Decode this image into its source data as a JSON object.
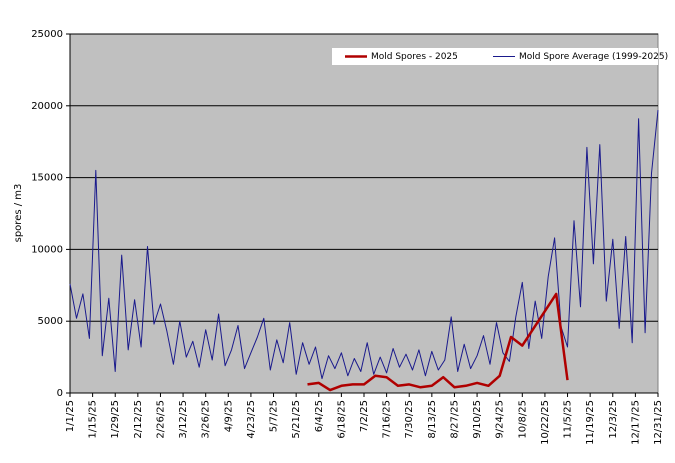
{
  "chart_data": {
    "type": "line",
    "y_label": "spores / m3",
    "ylim": [
      0,
      25000
    ],
    "yticks": [
      0,
      5000,
      10000,
      15000,
      20000,
      25000
    ],
    "grid": true,
    "xlim": [
      "1/1/25",
      "12/31/25"
    ],
    "xticks": [
      "1/1/25",
      "1/15/25",
      "1/29/25",
      "2/12/25",
      "2/26/25",
      "3/12/25",
      "3/26/25",
      "4/9/25",
      "4/23/25",
      "5/7/25",
      "5/21/25",
      "6/4/25",
      "6/18/25",
      "7/2/25",
      "7/16/25",
      "7/30/25",
      "8/13/25",
      "8/27/25",
      "9/10/25",
      "9/24/25",
      "10/8/25",
      "10/22/25",
      "11/5/25",
      "11/19/25",
      "12/3/25",
      "12/17/25",
      "12/31/25"
    ],
    "legend": "top-right",
    "series": [
      {
        "name": "Mold Spore Average (1999-2025)",
        "color": "#1a1a8c",
        "width": 1,
        "x": [
          "1/1/25",
          "1/5/25",
          "1/9/25",
          "1/13/25",
          "1/17/25",
          "1/21/25",
          "1/25/25",
          "1/29/25",
          "2/2/25",
          "2/6/25",
          "2/10/25",
          "2/14/25",
          "2/18/25",
          "2/22/25",
          "2/26/25",
          "3/2/25",
          "3/6/25",
          "3/10/25",
          "3/14/25",
          "3/18/25",
          "3/22/25",
          "3/26/25",
          "3/30/25",
          "4/3/25",
          "4/7/25",
          "4/11/25",
          "4/15/25",
          "4/19/25",
          "4/23/25",
          "4/27/25",
          "5/1/25",
          "5/5/25",
          "5/9/25",
          "5/13/25",
          "5/17/25",
          "5/21/25",
          "5/25/25",
          "5/29/25",
          "6/2/25",
          "6/6/25",
          "6/10/25",
          "6/14/25",
          "6/18/25",
          "6/22/25",
          "6/26/25",
          "6/30/25",
          "7/4/25",
          "7/8/25",
          "7/12/25",
          "7/16/25",
          "7/20/25",
          "7/24/25",
          "7/28/25",
          "8/1/25",
          "8/5/25",
          "8/9/25",
          "8/13/25",
          "8/17/25",
          "8/21/25",
          "8/25/25",
          "8/29/25",
          "9/2/25",
          "9/6/25",
          "9/10/25",
          "9/14/25",
          "9/18/25",
          "9/22/25",
          "9/26/25",
          "9/30/25",
          "10/4/25",
          "10/8/25",
          "10/12/25",
          "10/16/25",
          "10/20/25",
          "10/24/25",
          "10/28/25",
          "11/1/25",
          "11/5/25",
          "11/9/25",
          "11/13/25",
          "11/17/25",
          "11/21/25",
          "11/25/25",
          "11/29/25",
          "12/3/25",
          "12/7/25",
          "12/11/25",
          "12/15/25",
          "12/19/25",
          "12/23/25",
          "12/27/25",
          "12/31/25"
        ],
        "values": [
          7600,
          5200,
          6900,
          3800,
          15500,
          2600,
          6600,
          1500,
          9600,
          3000,
          6500,
          3200,
          10200,
          4800,
          6200,
          4300,
          2000,
          5000,
          2500,
          3600,
          1800,
          4400,
          2300,
          5500,
          1900,
          3000,
          4700,
          1700,
          2800,
          3900,
          5200,
          1600,
          3700,
          2100,
          4900,
          1300,
          3500,
          2000,
          3200,
          1000,
          2600,
          1700,
          2800,
          1200,
          2400,
          1500,
          3500,
          1300,
          2500,
          1400,
          3100,
          1800,
          2700,
          1600,
          3000,
          1200,
          2900,
          1600,
          2300,
          5300,
          1500,
          3400,
          1700,
          2600,
          4000,
          2000,
          4900,
          2800,
          2200,
          5300,
          7700,
          3100,
          6400,
          3800,
          8100,
          10800,
          4600,
          3200,
          12000,
          6000,
          17100,
          9000,
          17300,
          6400,
          10700,
          4500,
          10900,
          3500,
          19100,
          4200,
          15300,
          19700
        ]
      },
      {
        "name": "Mold Spores - 2025",
        "color": "#b00000",
        "width": 2.5,
        "x": [
          "5/28/25",
          "6/4/25",
          "6/11/25",
          "6/18/25",
          "6/25/25",
          "7/2/25",
          "7/9/25",
          "7/16/25",
          "7/23/25",
          "7/30/25",
          "8/6/25",
          "8/13/25",
          "8/20/25",
          "8/27/25",
          "9/3/25",
          "9/10/25",
          "9/17/25",
          "9/24/25",
          "10/1/25",
          "10/8/25",
          "10/29/25",
          "11/5/25"
        ],
        "values": [
          600,
          700,
          200,
          500,
          600,
          600,
          1200,
          1100,
          500,
          600,
          400,
          500,
          1100,
          400,
          500,
          700,
          500,
          1200,
          3900,
          3300,
          6900,
          900
        ]
      }
    ]
  }
}
